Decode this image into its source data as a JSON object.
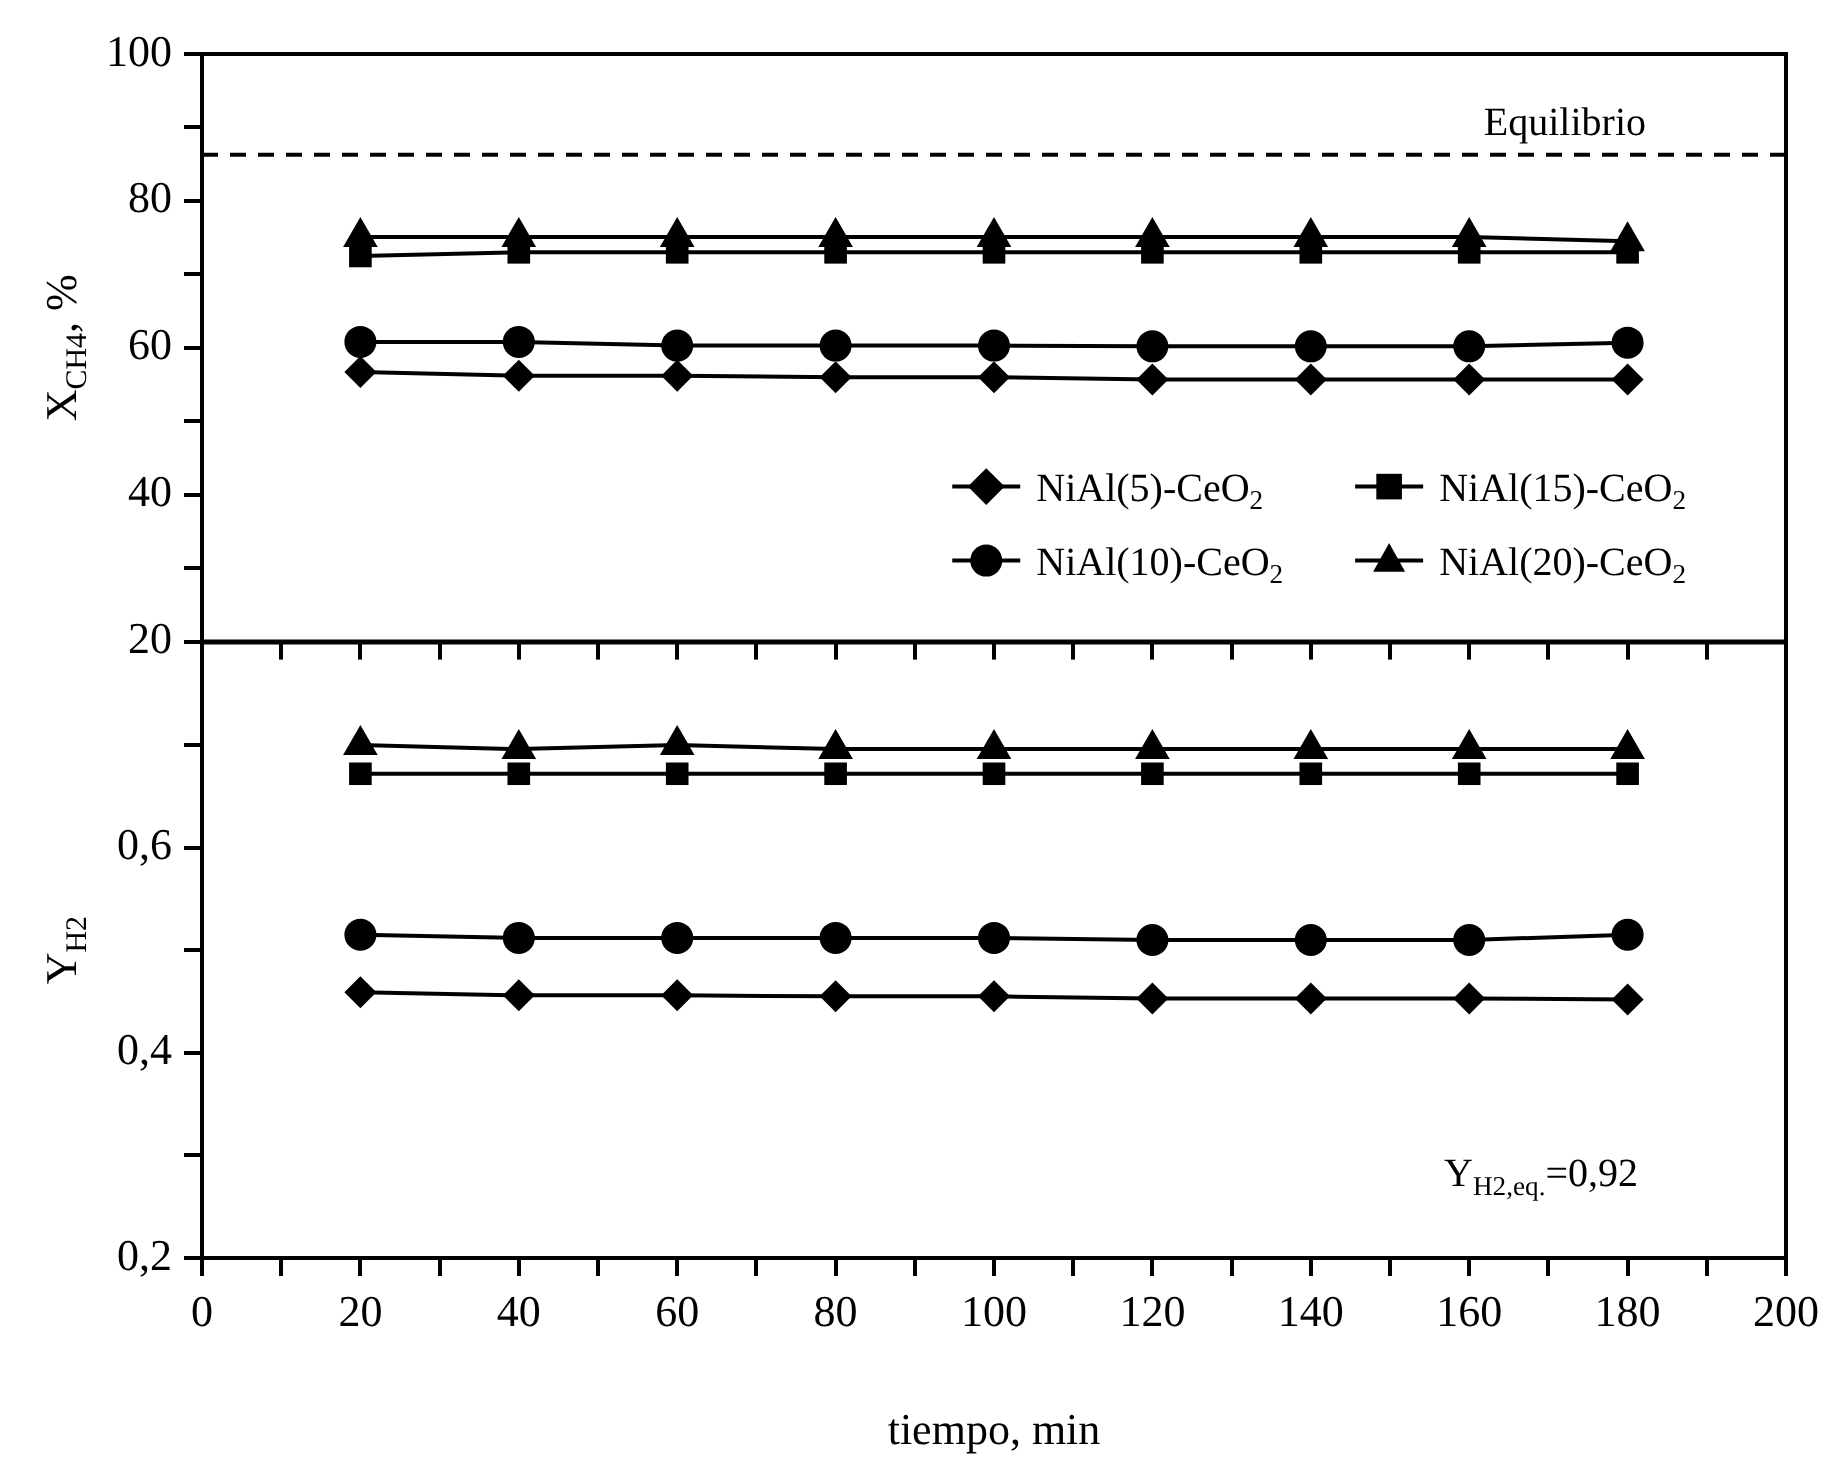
{
  "chart_data": [
    {
      "type": "line",
      "ylabel": "X$_{CH4}$, %",
      "x": [
        20,
        40,
        60,
        80,
        100,
        120,
        140,
        160,
        180
      ],
      "series": [
        {
          "name": "NiAl(5)-CeO$_{2}$",
          "color": "#000000",
          "marker": "diamond",
          "values": [
            56.7,
            56.2,
            56.2,
            56.0,
            56.0,
            55.7,
            55.7,
            55.7,
            55.7
          ]
        },
        {
          "name": "NiAl(10)-CeO$_{2}$",
          "color": "#000000",
          "marker": "circle",
          "values": [
            60.8,
            60.8,
            60.3,
            60.3,
            60.3,
            60.2,
            60.2,
            60.2,
            60.7
          ]
        },
        {
          "name": "NiAl(15)-CeO$_{2}$",
          "color": "#000000",
          "marker": "square",
          "values": [
            72.5,
            73.0,
            73.0,
            73.0,
            73.0,
            73.0,
            73.0,
            73.0,
            73.0
          ]
        },
        {
          "name": "NiAl(20)-CeO$_{2}$",
          "color": "#000000",
          "marker": "triangle",
          "values": [
            75.1,
            75.1,
            75.1,
            75.1,
            75.1,
            75.1,
            75.1,
            75.1,
            74.5
          ]
        }
      ],
      "xlim": [
        0,
        200
      ],
      "xticks": [
        0,
        {
          "value": 10,
          "label": null
        },
        20,
        {
          "value": 30,
          "label": null
        },
        40,
        {
          "value": 50,
          "label": null
        },
        60,
        {
          "value": 70,
          "label": null
        },
        80,
        {
          "value": 90,
          "label": null
        },
        100,
        {
          "value": 110,
          "label": null
        },
        120,
        {
          "value": 130,
          "label": null
        },
        140,
        {
          "value": 150,
          "label": null
        },
        160,
        {
          "value": 170,
          "label": null
        },
        180,
        {
          "value": 190,
          "label": null
        },
        200
      ],
      "ylim": [
        20,
        100
      ],
      "yticks": [
        20,
        {
          "value": 30,
          "label": null
        },
        40,
        {
          "value": 50,
          "label": null
        },
        60,
        {
          "value": 70,
          "label": null
        },
        80,
        {
          "value": 90,
          "label": null
        },
        100
      ],
      "tick_labels": "y",
      "legend": "bottom right",
      "grid": false,
      "line_style": "solid",
      "ref_lines": [
        {
          "axis": "y",
          "value": 86.3,
          "label": "Equilibrio",
          "line_style": "dashed",
          "color": "#000000"
        }
      ]
    },
    {
      "type": "line",
      "xlabel": "tiempo, min",
      "ylabel": "Y$_{H2}$",
      "x": [
        20,
        40,
        60,
        80,
        100,
        120,
        140,
        160,
        180
      ],
      "series": [
        {
          "color": "#000000",
          "marker": "diamond",
          "values": [
            0.459,
            0.456,
            0.456,
            0.455,
            0.455,
            0.453,
            0.453,
            0.453,
            0.452
          ]
        },
        {
          "color": "#000000",
          "marker": "circle",
          "values": [
            0.515,
            0.512,
            0.512,
            0.512,
            0.512,
            0.51,
            0.51,
            0.51,
            0.515
          ]
        },
        {
          "color": "#000000",
          "marker": "square",
          "values": [
            0.672,
            0.672,
            0.672,
            0.672,
            0.672,
            0.672,
            0.672,
            0.672,
            0.672
          ]
        },
        {
          "color": "#000000",
          "marker": "triangle",
          "values": [
            0.7,
            0.696,
            0.7,
            0.696,
            0.696,
            0.696,
            0.696,
            0.696,
            0.696
          ]
        }
      ],
      "xlim": [
        0,
        200
      ],
      "xticks": [
        0,
        {
          "value": 10,
          "label": null
        },
        20,
        {
          "value": 30,
          "label": null
        },
        40,
        {
          "value": 50,
          "label": null
        },
        60,
        {
          "value": 70,
          "label": null
        },
        80,
        {
          "value": 90,
          "label": null
        },
        100,
        {
          "value": 110,
          "label": null
        },
        120,
        {
          "value": 130,
          "label": null
        },
        140,
        {
          "value": 150,
          "label": null
        },
        160,
        {
          "value": 170,
          "label": null
        },
        180,
        {
          "value": 190,
          "label": null
        },
        200
      ],
      "ylim": [
        0.2,
        0.8
      ],
      "yticks": [
        {
          "value": 0.2,
          "label": "0,2"
        },
        {
          "value": 0.3,
          "label": null
        },
        {
          "value": 0.4,
          "label": "0,4"
        },
        {
          "value": 0.5,
          "label": null
        },
        {
          "value": 0.6,
          "label": "0,6"
        },
        {
          "value": 0.7,
          "label": null
        }
      ],
      "grid": false,
      "line_style": "solid",
      "annotations": [
        "Y$_{H2,eq.}$=0,92"
      ]
    }
  ]
}
